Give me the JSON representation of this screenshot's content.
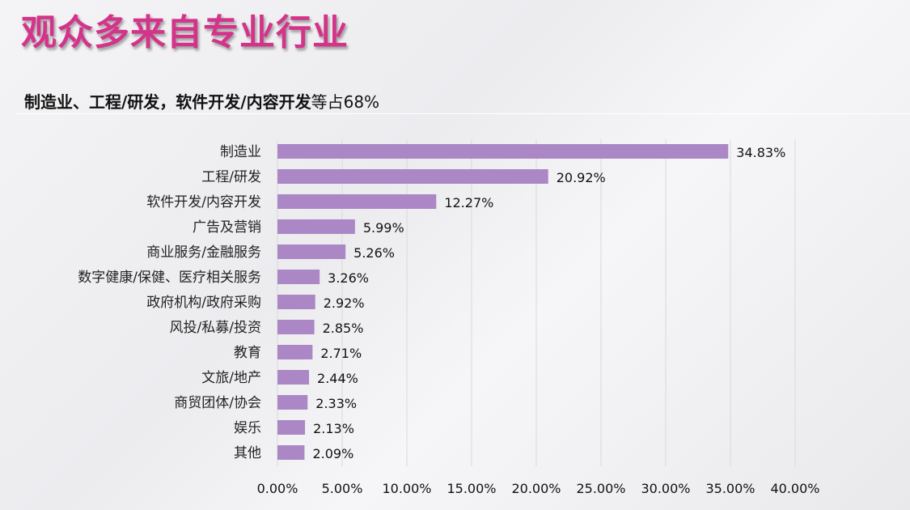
{
  "title": "观众多来自专业行业",
  "subtitle": {
    "bold": "制造业、工程/研发，软件开发/内容开发",
    "normal": "等占68%"
  },
  "chart_data": {
    "type": "bar",
    "orientation": "horizontal",
    "categories": [
      "制造业",
      "工程/研发",
      "软件开发/内容开发",
      "广告及营销",
      "商业服务/金融服务",
      "数字健康/保健、医疗相关服务",
      "政府机构/政府采购",
      "风投/私募/投资",
      "教育",
      "文旅/地产",
      "商贸团体/协会",
      "娱乐",
      "其他"
    ],
    "values": [
      34.83,
      20.92,
      12.27,
      5.99,
      5.26,
      3.26,
      2.92,
      2.85,
      2.71,
      2.44,
      2.33,
      2.13,
      2.09
    ],
    "data_labels": [
      "34.83%",
      "20.92%",
      "12.27%",
      "5.99%",
      "5.26%",
      "3.26%",
      "2.92%",
      "2.85%",
      "2.71%",
      "2.44%",
      "2.33%",
      "2.13%",
      "2.09%"
    ],
    "xlim": [
      0,
      40
    ],
    "xticks": [
      "0.00%",
      "5.00%",
      "10.00%",
      "15.00%",
      "20.00%",
      "25.00%",
      "30.00%",
      "35.00%",
      "40.00%"
    ],
    "grid": true,
    "bar_color": "#ab87c5"
  }
}
